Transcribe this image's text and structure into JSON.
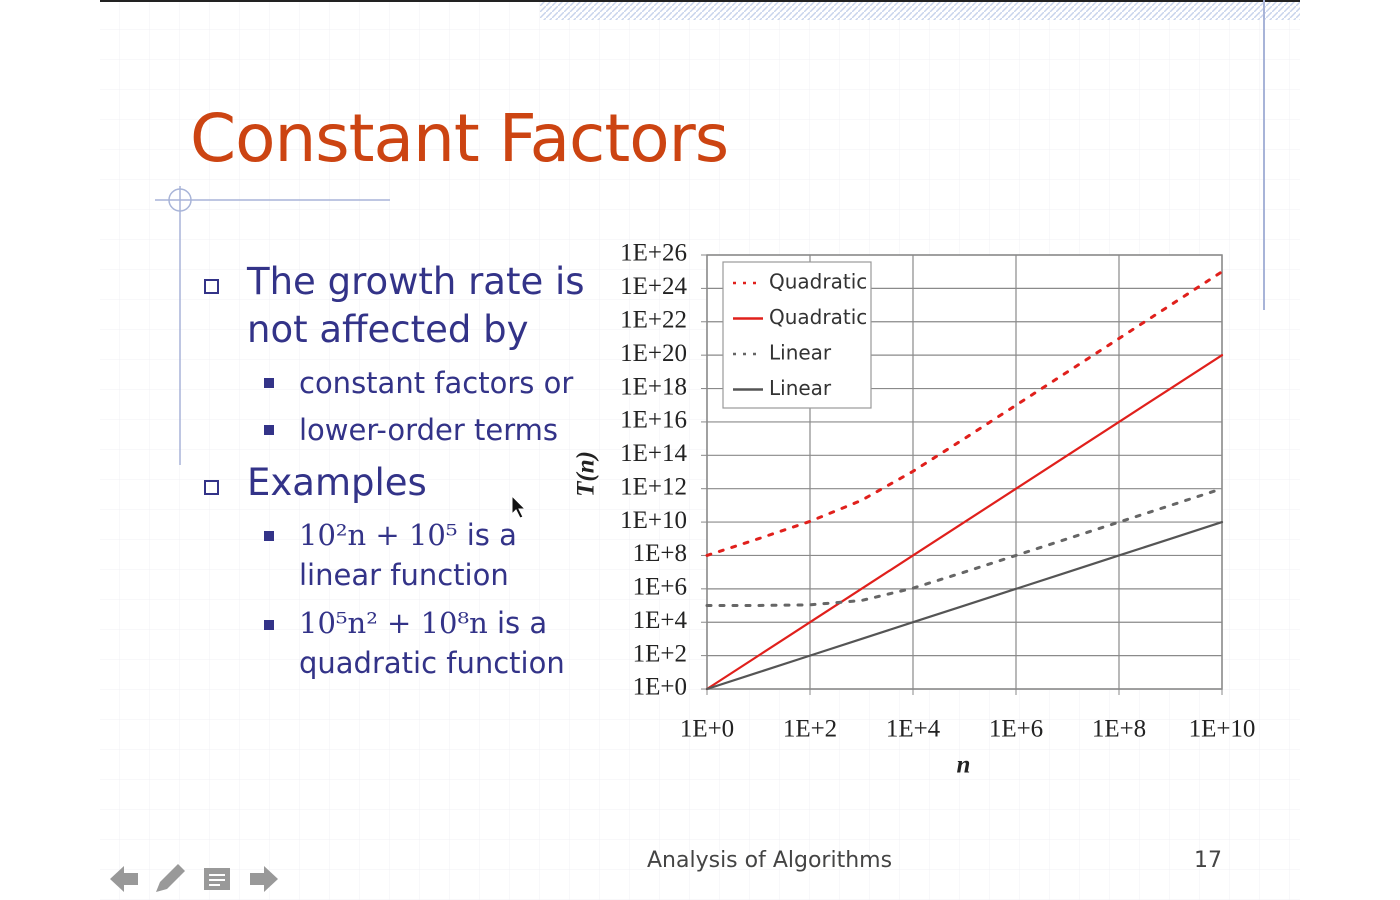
{
  "slide": {
    "title": "Constant Factors",
    "bullets": [
      {
        "text": "The growth rate is not affected by",
        "sub": [
          {
            "text": "constant factors or"
          },
          {
            "text": "lower-order terms"
          }
        ]
      },
      {
        "text": "Examples",
        "sub": [
          {
            "math": "10²n + 10⁵",
            "text": "is a linear function"
          },
          {
            "math": "10⁵n² + 10⁸n",
            "text": "is a quadratic function"
          }
        ]
      }
    ],
    "footer": "Analysis of Algorithms",
    "page_number": "17"
  },
  "chart_data": {
    "type": "line",
    "x_label": "n",
    "y_label": "T(n)",
    "xlog": true,
    "ylog": true,
    "grid": true,
    "legend": "upper left",
    "x": [
      1,
      10,
      100,
      1000,
      10000,
      100000,
      1000000,
      10000000,
      100000000,
      1000000000,
      10000000000
    ],
    "xlim": [
      1,
      10000000000
    ],
    "ylim": [
      1,
      1e+26
    ],
    "xticks": [
      {
        "value": 1,
        "label": "1E+0"
      },
      {
        "value": 100,
        "label": "1E+2"
      },
      {
        "value": 10000,
        "label": "1E+4"
      },
      {
        "value": 1000000,
        "label": "1E+6"
      },
      {
        "value": 100000000,
        "label": "1E+8"
      },
      {
        "value": 10000000000,
        "label": "1E+10"
      }
    ],
    "yticks": [
      {
        "value": 1,
        "label": "1E+0"
      },
      {
        "value": 100,
        "label": "1E+2"
      },
      {
        "value": 10000,
        "label": "1E+4"
      },
      {
        "value": 1000000,
        "label": "1E+6"
      },
      {
        "value": 100000000,
        "label": "1E+8"
      },
      {
        "value": 10000000000.0,
        "label": "1E+10"
      },
      {
        "value": 1000000000000.0,
        "label": "1E+12"
      },
      {
        "value": 100000000000000.0,
        "label": "1E+14"
      },
      {
        "value": 1e+16,
        "label": "1E+16"
      },
      {
        "value": 1e+18,
        "label": "1E+18"
      },
      {
        "value": 1e+20,
        "label": "1E+20"
      },
      {
        "value": 1e+22,
        "label": "1E+22"
      },
      {
        "value": 1e+24,
        "label": "1E+24"
      },
      {
        "value": 1e+26,
        "label": "1E+26"
      }
    ],
    "series": [
      {
        "name": "Quadratic",
        "color": "#e0201c",
        "dash": "dotted",
        "values": [
          100100000,
          1010000000,
          11000000000,
          200000000000,
          11000000000000,
          1010000000000000.0,
          1.001e+17,
          1.0001e+19,
          1.00001e+21,
          1.000001e+23,
          1.0000001e+25
        ]
      },
      {
        "name": "Quadratic",
        "color": "#e0201c",
        "dash": "solid",
        "values": [
          1,
          100,
          10000,
          1000000,
          100000000,
          10000000000.0,
          1000000000000.0,
          100000000000000.0,
          1e+16,
          1e+18,
          1e+20
        ]
      },
      {
        "name": "Linear",
        "color": "#666666",
        "dash": "dotted",
        "values": [
          100100,
          101000,
          110000,
          200000,
          1100000,
          10100000,
          100100000,
          1000100000,
          10000100000,
          100000100000,
          1000000100000
        ]
      },
      {
        "name": "Linear",
        "color": "#555555",
        "dash": "solid",
        "values": [
          1,
          10,
          100,
          1000,
          10000,
          100000,
          1000000,
          10000000,
          100000000,
          1000000000,
          10000000000
        ]
      }
    ]
  }
}
